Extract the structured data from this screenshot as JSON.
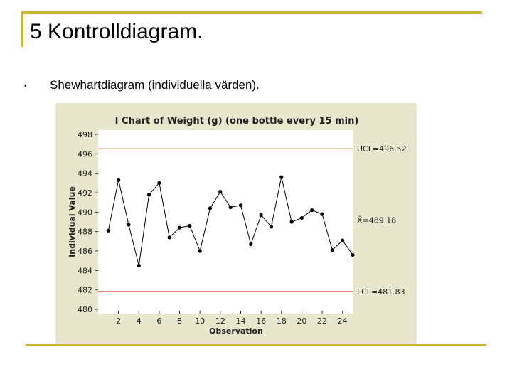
{
  "slide": {
    "title": "5 Kontrolldiagram.",
    "bullet_marker": "•",
    "bullet_text": "Shewhartdiagram (individuella värden)."
  },
  "colors": {
    "accent": "#c8b432",
    "chart_background": "#e8e6cc",
    "limit_line": "#cc0000",
    "series": "#000000"
  },
  "chart_data": {
    "type": "line",
    "title": "I Chart of Weight (g) (one bottle every 15 min)",
    "xlabel": "Observation",
    "ylabel": "Individual Value",
    "ylim": [
      480,
      498
    ],
    "xlim": [
      0,
      25
    ],
    "yticks": [
      480,
      482,
      484,
      486,
      488,
      490,
      492,
      494,
      496,
      498
    ],
    "xticks": [
      2,
      4,
      6,
      8,
      10,
      12,
      14,
      16,
      18,
      20,
      22,
      24
    ],
    "x": [
      1,
      2,
      3,
      4,
      5,
      6,
      7,
      8,
      9,
      10,
      11,
      12,
      13,
      14,
      15,
      16,
      17,
      18,
      19,
      20,
      21,
      22,
      23,
      24,
      25
    ],
    "series": [
      {
        "name": "Weight (g)",
        "values": [
          488.1,
          493.3,
          488.7,
          484.5,
          491.8,
          493.0,
          487.4,
          488.4,
          488.6,
          486.0,
          490.4,
          492.1,
          490.5,
          490.7,
          486.7,
          489.7,
          488.5,
          493.6,
          489.0,
          489.4,
          490.2,
          489.8,
          486.1,
          487.1,
          485.6
        ]
      }
    ],
    "control_limits": [
      {
        "name": "UCL",
        "value": 496.52,
        "label": "UCL=496.52"
      },
      {
        "name": "Center",
        "value": 489.18,
        "label": "X̄=489.18"
      },
      {
        "name": "LCL",
        "value": 481.83,
        "label": "LCL=481.83"
      }
    ]
  }
}
